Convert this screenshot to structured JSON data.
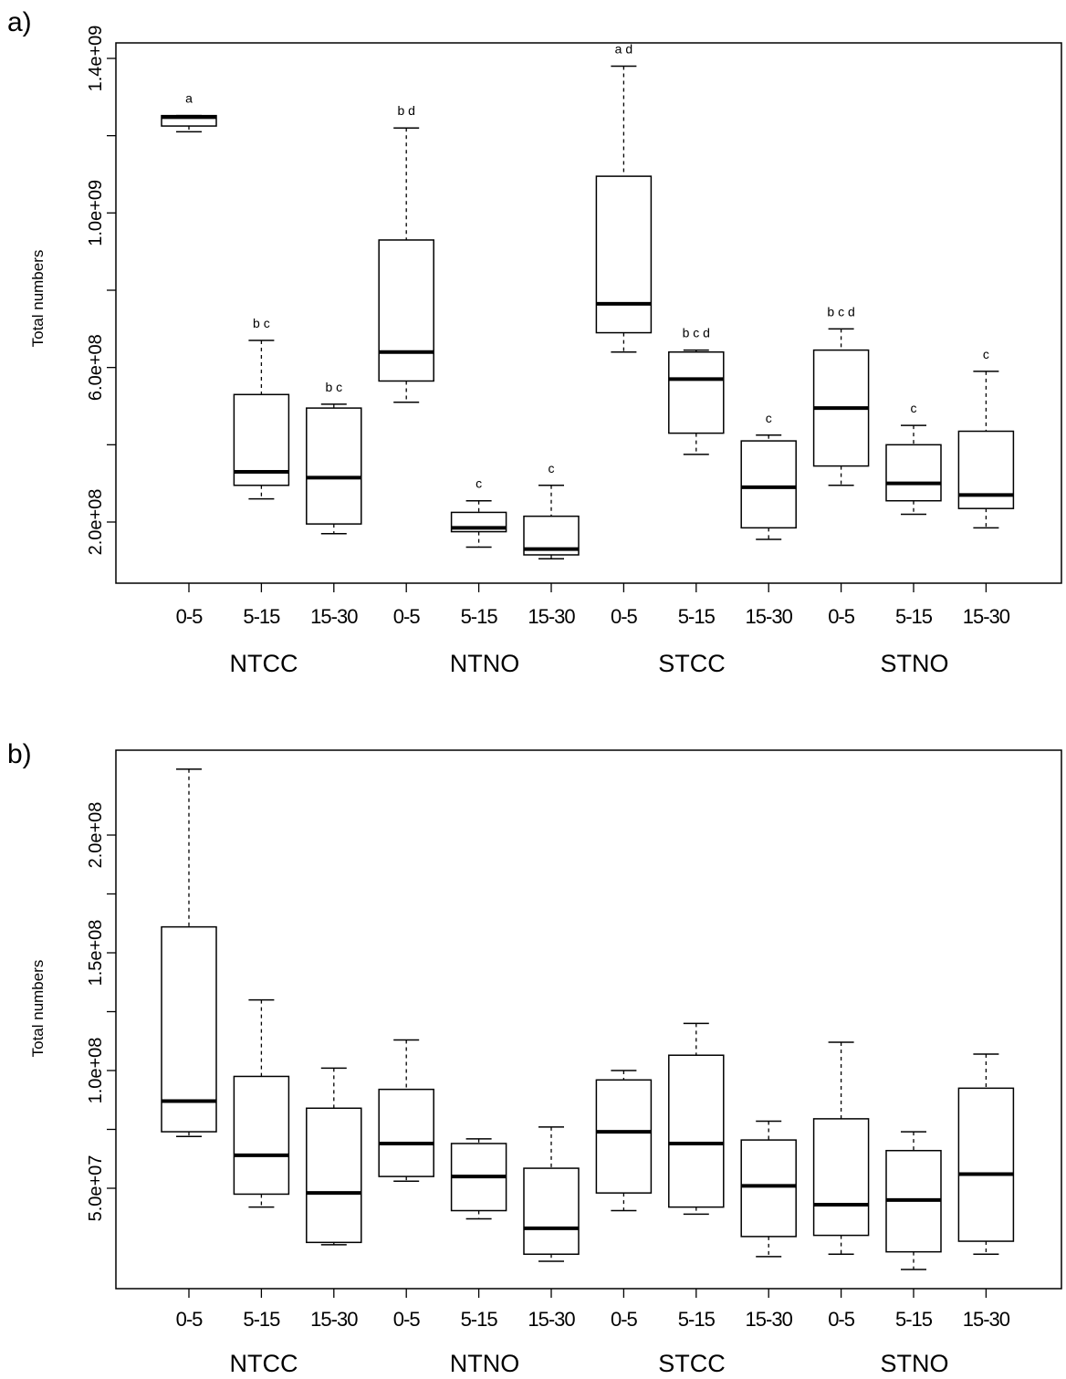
{
  "chart_data": [
    {
      "type": "box",
      "panel_label": "a)",
      "title": "",
      "xlabel": "",
      "ylabel": "Total numbers",
      "ylim": [
        40000000,
        1400000000
      ],
      "yticks": [
        200000000.0,
        600000000.0,
        1000000000.0,
        1400000000.0
      ],
      "ytick_labels": [
        "2.0e+08",
        "6.0e+08",
        "1.0e+09",
        "1.4e+09"
      ],
      "categories": [
        "0-5",
        "5-15",
        "15-30",
        "0-5",
        "5-15",
        "15-30",
        "0-5",
        "5-15",
        "15-30",
        "0-5",
        "5-15",
        "15-30"
      ],
      "groups": [
        "NTCC",
        "NTNO",
        "STCC",
        "STNO"
      ],
      "boxes": [
        {
          "min": 1210000000.0,
          "q1": 1225000000.0,
          "median": 1248000000.0,
          "q3": 1252000000.0,
          "max": 1252000000.0,
          "label": "a"
        },
        {
          "min": 260000000.0,
          "q1": 295000000.0,
          "median": 330000000.0,
          "q3": 530000000.0,
          "max": 670000000.0,
          "label": "b c"
        },
        {
          "min": 170000000.0,
          "q1": 195000000.0,
          "median": 315000000.0,
          "q3": 495000000.0,
          "max": 505000000.0,
          "label": "b c"
        },
        {
          "min": 510000000.0,
          "q1": 565000000.0,
          "median": 640000000.0,
          "q3": 930000000.0,
          "max": 1220000000.0,
          "label": "b d"
        },
        {
          "min": 135000000.0,
          "q1": 175000000.0,
          "median": 185000000.0,
          "q3": 225000000.0,
          "max": 255000000.0,
          "label": "c"
        },
        {
          "min": 105000000.0,
          "q1": 115000000.0,
          "median": 130000000.0,
          "q3": 215000000.0,
          "max": 295000000.0,
          "label": "c"
        },
        {
          "min": 640000000.0,
          "q1": 690000000.0,
          "median": 765000000.0,
          "q3": 1095000000.0,
          "max": 1380000000.0,
          "label": "a d"
        },
        {
          "min": 375000000.0,
          "q1": 430000000.0,
          "median": 570000000.0,
          "q3": 640000000.0,
          "max": 645000000.0,
          "label": "b c d"
        },
        {
          "min": 155000000.0,
          "q1": 185000000.0,
          "median": 290000000.0,
          "q3": 410000000.0,
          "max": 425000000.0,
          "label": "c"
        },
        {
          "min": 295000000.0,
          "q1": 345000000.0,
          "median": 495000000.0,
          "q3": 645000000.0,
          "max": 700000000.0,
          "label": "b c d"
        },
        {
          "min": 220000000.0,
          "q1": 255000000.0,
          "median": 300000000.0,
          "q3": 400000000.0,
          "max": 450000000.0,
          "label": "c"
        },
        {
          "min": 185000000.0,
          "q1": 235000000.0,
          "median": 270000000.0,
          "q3": 435000000.0,
          "max": 590000000.0,
          "label": "c"
        }
      ]
    },
    {
      "type": "box",
      "panel_label": "b)",
      "title": "",
      "xlabel": "",
      "ylabel": "Total numbers",
      "ylim": [
        5000000,
        230000000
      ],
      "yticks": [
        50000000.0,
        100000000.0,
        150000000.0,
        200000000.0
      ],
      "ytick_labels": [
        "5.0e+07",
        "1.0e+08",
        "1.5e+08",
        "2.0e+08"
      ],
      "categories": [
        "0-5",
        "5-15",
        "15-30",
        "0-5",
        "5-15",
        "15-30",
        "0-5",
        "5-15",
        "15-30",
        "0-5",
        "5-15",
        "15-30"
      ],
      "groups": [
        "NTCC",
        "NTNO",
        "STCC",
        "STNO"
      ],
      "boxes": [
        {
          "min": 72000000.0,
          "q1": 74000000.0,
          "median": 87000000.0,
          "q3": 161000000.0,
          "max": 228000000.0
        },
        {
          "min": 42000000.0,
          "q1": 47500000.0,
          "median": 64000000.0,
          "q3": 97500000.0,
          "max": 130000000.0
        },
        {
          "min": 26000000.0,
          "q1": 27000000.0,
          "median": 48000000.0,
          "q3": 84000000.0,
          "max": 101000000.0
        },
        {
          "min": 53000000.0,
          "q1": 55000000.0,
          "median": 69000000.0,
          "q3": 92000000.0,
          "max": 113000000.0
        },
        {
          "min": 37000000.0,
          "q1": 40500000.0,
          "median": 55000000.0,
          "q3": 69000000.0,
          "max": 71000000.0
        },
        {
          "min": 19000000.0,
          "q1": 22000000.0,
          "median": 33000000.0,
          "q3": 58500000.0,
          "max": 76000000.0
        },
        {
          "min": 40500000.0,
          "q1": 48000000.0,
          "median": 74000000.0,
          "q3": 96000000.0,
          "max": 100000000.0
        },
        {
          "min": 39000000.0,
          "q1": 42000000.0,
          "median": 69000000.0,
          "q3": 106500000.0,
          "max": 120000000.0
        },
        {
          "min": 21000000.0,
          "q1": 29500000.0,
          "median": 51000000.0,
          "q3": 70500000.0,
          "max": 78500000.0
        },
        {
          "min": 22000000.0,
          "q1": 30000000.0,
          "median": 43000000.0,
          "q3": 79500000.0,
          "max": 112000000.0
        },
        {
          "min": 15500000.0,
          "q1": 23000000.0,
          "median": 45000000.0,
          "q3": 66000000.0,
          "max": 74000000.0
        },
        {
          "min": 22000000.0,
          "q1": 27500000.0,
          "median": 56000000.0,
          "q3": 92500000.0,
          "max": 107000000.0
        }
      ]
    }
  ]
}
